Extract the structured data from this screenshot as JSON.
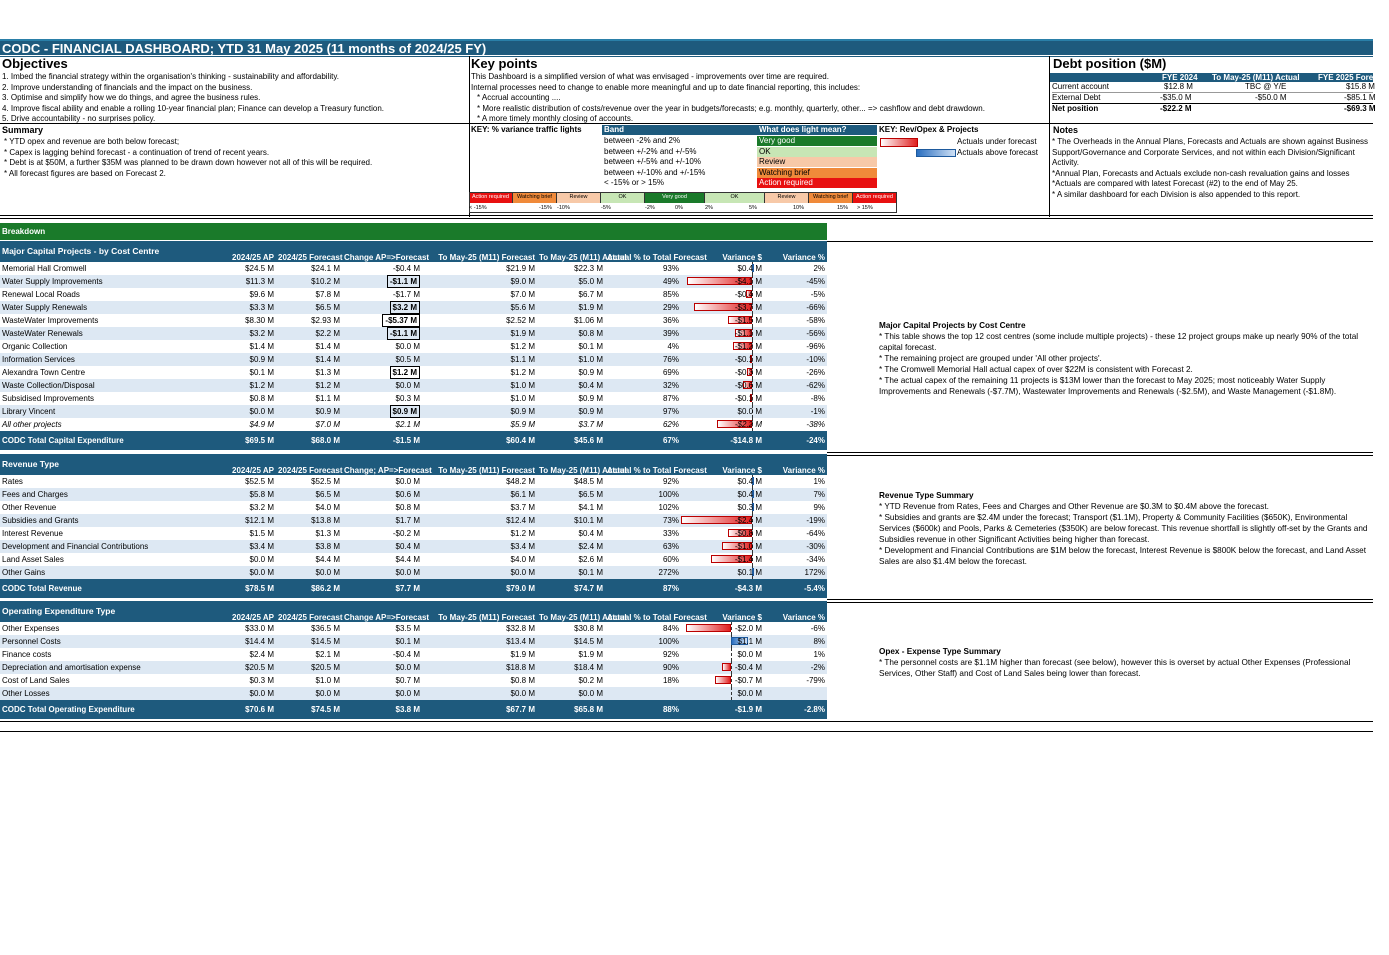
{
  "title": "CODC - FINANCIAL DASHBOARD; YTD 31 May 2025 (11 months of 2024/25 FY)",
  "objectives": {
    "heading": "Objectives",
    "items": [
      "1. Imbed the financial strategy within the organisation's thinking - sustainability and affordability.",
      "2. Improve understanding of financials and the impact on the business.",
      "3. Optimise and simplify how we do things, and agree the business rules.",
      "4. Improve fiscal ability and enable a rolling 10-year financial plan; Finance can develop a Treasury function.",
      "5. Drive accountability - no surprises policy."
    ]
  },
  "key_points": {
    "heading": "Key points",
    "items": [
      "This Dashboard is a simplified version of what was envisaged - improvements over time are required.",
      "Internal processes need to change to enable more meaningful and up to date financial reporting, this includes:",
      "* Accrual accounting ....",
      "* More realistic distribution of costs/revenue over the year in budgets/forecasts; e.g. monthly, quarterly, other... => cashflow and debt drawdown.",
      "* A more timely monthly closing of accounts."
    ]
  },
  "debt": {
    "heading": "Debt position ($M)",
    "columns": [
      "FYE 2024",
      "To May-25 (M11) Actual",
      "FYE 2025 Forecast"
    ],
    "rows": [
      {
        "label": "Current account",
        "v1": "$12.8 M",
        "v2": "TBC @ Y/E",
        "v3": "$15.8 M"
      },
      {
        "label": "External Debt",
        "v1": "-$35.0 M",
        "v2": "-$50.0 M",
        "v3": "-$85.1 M"
      },
      {
        "label": "Net position",
        "v1": "-$22.2 M",
        "v2": "",
        "v3": "-$69.3 M"
      }
    ]
  },
  "summary": {
    "heading": "Summary",
    "items": [
      "* YTD opex and revenue are both below forecast;",
      "* Capex is lagging behind forecast - a continuation of trend of recent years.",
      "* Debt is at $50M, a further $35M was planned to be drawn down however not all of this will be required.",
      "* All forecast figures are based on Forecast 2."
    ]
  },
  "key_traffic": {
    "heading": "KEY: % variance traffic lights",
    "band_heading": "Band",
    "light_heading": "What does light mean?",
    "rows": [
      {
        "band": "between -2% and 2%",
        "light": "Very good",
        "color": "#1a7a2a",
        "text": "#fff"
      },
      {
        "band": "between +/-2% and +/-5%",
        "light": "OK",
        "color": "#c7e6b5",
        "text": "#000"
      },
      {
        "band": "between +/-5% and +/-10%",
        "light": "Review",
        "color": "#f7c9a8",
        "text": "#000"
      },
      {
        "band": "between +/-10% and +/-15%",
        "light": "Watching brief",
        "color": "#f08a3a",
        "text": "#000"
      },
      {
        "band": "< -15% or > 15%",
        "light": "Action required",
        "color": "#e81010",
        "text": "#fff"
      }
    ],
    "scale_labels": [
      "Action required",
      "Watching brief",
      "Review",
      "OK",
      "Very good",
      "OK",
      "Review",
      "Watching brief",
      "Action required"
    ],
    "scale_ticks": [
      "< -15%",
      "-15%",
      "-10%",
      "-5%",
      "-2%",
      "0%",
      "2%",
      "5%",
      "10%",
      "15%",
      "> 15%"
    ]
  },
  "key_rev": {
    "heading": "KEY: Rev/Opex & Projects",
    "under": "Actuals under forecast",
    "above": "Actuals above forecast"
  },
  "notes": {
    "heading": "Notes",
    "items": [
      "* The Overheads in the Annual Plans, Forecasts and Actuals are shown against Business Support/Governance and Corporate Services, and not within each Division/Significant Activity.",
      "*Annual Plan, Forecasts and Actuals exclude non-cash revaluation gains and losses",
      "*Actuals are compared with latest Forecast (#2) to the end of May 25.",
      "* A similar dashboard for each Division is also appended to this report."
    ]
  },
  "breakdown_label": "Breakdown",
  "capex": {
    "headers": [
      "Major Capital  Projects - by Cost Centre",
      "2024/25 AP",
      "2024/25 Forecast",
      "Change AP=>Forecast",
      "To May-25 (M11) Forecast",
      "To May-25 (M11) Actual",
      "Actual % to Total Forecast",
      "Variance $",
      "Variance %"
    ],
    "rows": [
      {
        "name": "Memorial Hall Cromwell",
        "ap": "$24.5 M",
        "fc": "$24.1 M",
        "chg": "-$0.4 M",
        "box": false,
        "ytdf": "$21.9 M",
        "ytda": "$22.3 M",
        "pct": "93%",
        "var": "$0.4 M",
        "varn": 0.4,
        "varp": "2%"
      },
      {
        "name": "Water Supply Improvements",
        "ap": "$11.3 M",
        "fc": "$10.2 M",
        "chg": "-$1.1 M",
        "box": true,
        "ytdf": "$9.0 M",
        "ytda": "$5.0 M",
        "pct": "49%",
        "var": "-$4.1 M",
        "varn": -4.1,
        "varp": "-45%"
      },
      {
        "name": "Renewal Local Roads",
        "ap": "$9.6 M",
        "fc": "$7.8 M",
        "chg": "-$1.7 M",
        "box": false,
        "ytdf": "$7.0 M",
        "ytda": "$6.7 M",
        "pct": "85%",
        "var": "-$0.4 M",
        "varn": -0.4,
        "varp": "-5%"
      },
      {
        "name": "Water Supply Renewals",
        "ap": "$3.3 M",
        "fc": "$6.5 M",
        "chg": "$3.2 M",
        "box": true,
        "ytdf": "$5.6 M",
        "ytda": "$1.9 M",
        "pct": "29%",
        "var": "-$3.7 M",
        "varn": -3.7,
        "varp": "-66%"
      },
      {
        "name": "WasteWater Improvements",
        "ap": "$8.30 M",
        "fc": "$2.93 M",
        "chg": "-$5.37 M",
        "box": true,
        "ytdf": "$2.52 M",
        "ytda": "$1.06 M",
        "pct": "36%",
        "var": "-$1.5 M",
        "varn": -1.5,
        "varp": "-58%"
      },
      {
        "name": "WasteWater Renewals",
        "ap": "$3.2 M",
        "fc": "$2.2 M",
        "chg": "-$1.1 M",
        "box": true,
        "ytdf": "$1.9 M",
        "ytda": "$0.8 M",
        "pct": "39%",
        "var": "-$1.1 M",
        "varn": -1.1,
        "varp": "-56%"
      },
      {
        "name": "Organic Collection",
        "ap": "$1.4 M",
        "fc": "$1.4 M",
        "chg": "$0.0 M",
        "box": false,
        "ytdf": "$1.2 M",
        "ytda": "$0.1 M",
        "pct": "4%",
        "var": "-$1.2 M",
        "varn": -1.2,
        "varp": "-96%"
      },
      {
        "name": "Information Services",
        "ap": "$0.9 M",
        "fc": "$1.4 M",
        "chg": "$0.5 M",
        "box": false,
        "ytdf": "$1.1 M",
        "ytda": "$1.0 M",
        "pct": "76%",
        "var": "-$0.1 M",
        "varn": -0.1,
        "varp": "-10%"
      },
      {
        "name": "Alexandra Town Centre",
        "ap": "$0.1 M",
        "fc": "$1.3 M",
        "chg": "$1.2 M",
        "box": true,
        "ytdf": "$1.2 M",
        "ytda": "$0.9 M",
        "pct": "69%",
        "var": "-$0.3 M",
        "varn": -0.3,
        "varp": "-26%"
      },
      {
        "name": "Waste Collection/Disposal",
        "ap": "$1.2 M",
        "fc": "$1.2 M",
        "chg": "$0.0 M",
        "box": false,
        "ytdf": "$1.0 M",
        "ytda": "$0.4 M",
        "pct": "32%",
        "var": "-$0.6 M",
        "varn": -0.6,
        "varp": "-62%"
      },
      {
        "name": "Subsidised Improvements",
        "ap": "$0.8 M",
        "fc": "$1.1 M",
        "chg": "$0.3 M",
        "box": false,
        "ytdf": "$1.0 M",
        "ytda": "$0.9 M",
        "pct": "87%",
        "var": "-$0.1 M",
        "varn": -0.1,
        "varp": "-8%"
      },
      {
        "name": "Library Vincent",
        "ap": "$0.0 M",
        "fc": "$0.9 M",
        "chg": "$0.9 M",
        "box": true,
        "ytdf": "$0.9 M",
        "ytda": "$0.9 M",
        "pct": "97%",
        "var": "$0.0 M",
        "varn": 0.0,
        "varp": "-1%"
      },
      {
        "name": "All other projects",
        "ap": "$4.9 M",
        "fc": "$7.0 M",
        "chg": "$2.1 M",
        "box": false,
        "italic": true,
        "ytdf": "$5.9 M",
        "ytda": "$3.7 M",
        "pct": "62%",
        "var": "-$2.2 M",
        "varn": -2.2,
        "varp": "-38%"
      }
    ],
    "total": {
      "name": "CODC Total Capital Expenditure",
      "ap": "$69.5 M",
      "fc": "$68.0 M",
      "chg": "-$1.5 M",
      "ytdf": "$60.4 M",
      "ytda": "$45.6 M",
      "pct": "67%",
      "var": "-$14.8 M",
      "varp": "-24%"
    }
  },
  "revenue": {
    "headers": [
      "Revenue Type",
      "2024/25 AP",
      "2024/25 Forecast",
      "Change; AP=>Forecast",
      "To May-25 (M11) Forecast",
      "To May-25 (M11) Actual",
      "Actual % to Total Forecast",
      "Variance $",
      "Variance %"
    ],
    "rows": [
      {
        "name": "Rates",
        "ap": "$52.5 M",
        "fc": "$52.5 M",
        "chg": "$0.0 M",
        "ytdf": "$48.2 M",
        "ytda": "$48.5 M",
        "pct": "92%",
        "var": "$0.4 M",
        "varn": 0.4,
        "varp": "1%"
      },
      {
        "name": "Fees and Charges",
        "ap": "$5.8 M",
        "fc": "$6.5 M",
        "chg": "$0.6 M",
        "ytdf": "$6.1 M",
        "ytda": "$6.5 M",
        "pct": "100%",
        "var": "$0.4 M",
        "varn": 0.4,
        "varp": "7%"
      },
      {
        "name": "Other Revenue",
        "ap": "$3.2 M",
        "fc": "$4.0 M",
        "chg": "$0.8 M",
        "ytdf": "$3.7 M",
        "ytda": "$4.1 M",
        "pct": "102%",
        "var": "$0.3 M",
        "varn": 0.3,
        "varp": "9%"
      },
      {
        "name": "Subsidies and Grants",
        "ap": "$12.1 M",
        "fc": "$13.8 M",
        "chg": "$1.7 M",
        "ytdf": "$12.4 M",
        "ytda": "$10.1 M",
        "pct": "73%",
        "var": "-$2.4 M",
        "varn": -2.4,
        "varp": "-19%"
      },
      {
        "name": "Interest Revenue",
        "ap": "$1.5 M",
        "fc": "$1.3 M",
        "chg": "-$0.2 M",
        "ytdf": "$1.2 M",
        "ytda": "$0.4 M",
        "pct": "33%",
        "var": "-$0.8 M",
        "varn": -0.8,
        "varp": "-64%"
      },
      {
        "name": "Development and Financial Contributions",
        "ap": "$3.4 M",
        "fc": "$3.8 M",
        "chg": "$0.4 M",
        "ytdf": "$3.4 M",
        "ytda": "$2.4 M",
        "pct": "63%",
        "var": "-$1.0 M",
        "varn": -1.0,
        "varp": "-30%"
      },
      {
        "name": "Land Asset Sales",
        "ap": "$0.0 M",
        "fc": "$4.4 M",
        "chg": "$4.4 M",
        "ytdf": "$4.0 M",
        "ytda": "$2.6 M",
        "pct": "60%",
        "var": "-$1.4 M",
        "varn": -1.4,
        "varp": "-34%"
      },
      {
        "name": "Other Gains",
        "ap": "$0.0 M",
        "fc": "$0.0 M",
        "chg": "$0.0 M",
        "ytdf": "$0.0 M",
        "ytda": "$0.1 M",
        "pct": "272%",
        "var": "$0.1 M",
        "varn": 0.1,
        "varp": "172%"
      }
    ],
    "total": {
      "name": "CODC Total Revenue",
      "ap": "$78.5 M",
      "fc": "$86.2 M",
      "chg": "$7.7 M",
      "ytdf": "$79.0 M",
      "ytda": "$74.7 M",
      "pct": "87%",
      "var": "-$4.3 M",
      "varp": "-5.4%"
    }
  },
  "opex": {
    "headers": [
      "Operating Expenditure Type",
      "2024/25 AP",
      "2024/25 Forecast",
      "Change AP=>Forecast",
      "To May-25 (M11) Forecast",
      "To May-25 (M11) Actual",
      "Actual % to Total Forecast",
      "Variance $",
      "Variance %"
    ],
    "rows": [
      {
        "name": "Other Expenses",
        "ap": "$33.0 M",
        "fc": "$36.5 M",
        "chg": "$3.5 M",
        "ytdf": "$32.8 M",
        "ytda": "$30.8 M",
        "pct": "84%",
        "var": "-$2.0 M",
        "varn": -2.0,
        "varp": "-6%"
      },
      {
        "name": "Personnel Costs",
        "ap": "$14.4 M",
        "fc": "$14.5 M",
        "chg": "$0.1 M",
        "ytdf": "$13.4 M",
        "ytda": "$14.5 M",
        "pct": "100%",
        "var": "$1.1 M",
        "varn": 1.1,
        "varp": "8%"
      },
      {
        "name": "Finance costs",
        "ap": "$2.4 M",
        "fc": "$2.1 M",
        "chg": "-$0.4 M",
        "ytdf": "$1.9 M",
        "ytda": "$1.9 M",
        "pct": "92%",
        "var": "$0.0 M",
        "varn": 0.0,
        "varp": "1%"
      },
      {
        "name": "Depreciation and amortisation expense",
        "ap": "$20.5 M",
        "fc": "$20.5 M",
        "chg": "$0.0 M",
        "ytdf": "$18.8 M",
        "ytda": "$18.4 M",
        "pct": "90%",
        "var": "-$0.4 M",
        "varn": -0.4,
        "varp": "-2%"
      },
      {
        "name": "Cost of Land Sales",
        "ap": "$0.3 M",
        "fc": "$1.0 M",
        "chg": "$0.7 M",
        "ytdf": "$0.8 M",
        "ytda": "$0.2 M",
        "pct": "18%",
        "var": "-$0.7 M",
        "varn": -0.7,
        "varp": "-79%"
      },
      {
        "name": "Other Losses",
        "ap": "$0.0 M",
        "fc": "$0.0 M",
        "chg": "$0.0 M",
        "ytdf": "$0.0 M",
        "ytda": "$0.0 M",
        "pct": "",
        "var": "$0.0 M",
        "varn": 0.0,
        "varp": ""
      }
    ],
    "total": {
      "name": "CODC Total Operating Expenditure",
      "ap": "$70.6 M",
      "fc": "$74.5 M",
      "chg": "$3.8 M",
      "ytdf": "$67.7 M",
      "ytda": "$65.8 M",
      "pct": "88%",
      "var": "-$1.9 M",
      "varp": "-2.8%"
    }
  },
  "capex_note": {
    "heading": "Major Capital Projects by Cost Centre",
    "items": [
      "* This table shows the top 12 cost centres (some include multiple projects) - these 12 project groups make up nearly 90% of the total capital forecast.",
      "* The remaining project are grouped under 'All other projects'.",
      "* The Cromwell Memorial Hall actual capex of over $22M is consistent with Forecast 2.",
      "* The actual capex of the remaining 11 projects is $13M lower than the forecast to May 2025; most noticeably Water Supply Improvements and Renewals (-$7.7M), Wastewater Improvements and Renewals (-$2.5M), and Waste Management (-$1.8M)."
    ]
  },
  "revenue_note": {
    "heading": "Revenue Type Summary",
    "items": [
      "* YTD Revenue from Rates, Fees and Charges and Other Revenue are $0.3M to $0.4M above the forecast.",
      "* Subsidies and grants are $2.4M under the forecast; Transport ($1.1M), Property & Community Facilities ($650K), Environmental Services ($600k) and Pools, Parks & Cemeteries ($350K) are below forecast. This revenue shortfall is slightly off-set by the Grants and Subsidies revenue in other Significant Activities being higher than forecast.",
      "* Development and Financial Contributions are $1M below the forecast, Interest Revenue is $800K below the forecast, and Land Asset Sales are also $1.4M below the forecast."
    ]
  },
  "opex_note": {
    "heading": "Opex - Expense Type Summary",
    "items": [
      "* The personnel costs are $1.1M higher than forecast (see below), however this is overset by actual Other Expenses (Professional Services, Other Staff) and Cost of Land Sales being lower than forecast."
    ]
  }
}
